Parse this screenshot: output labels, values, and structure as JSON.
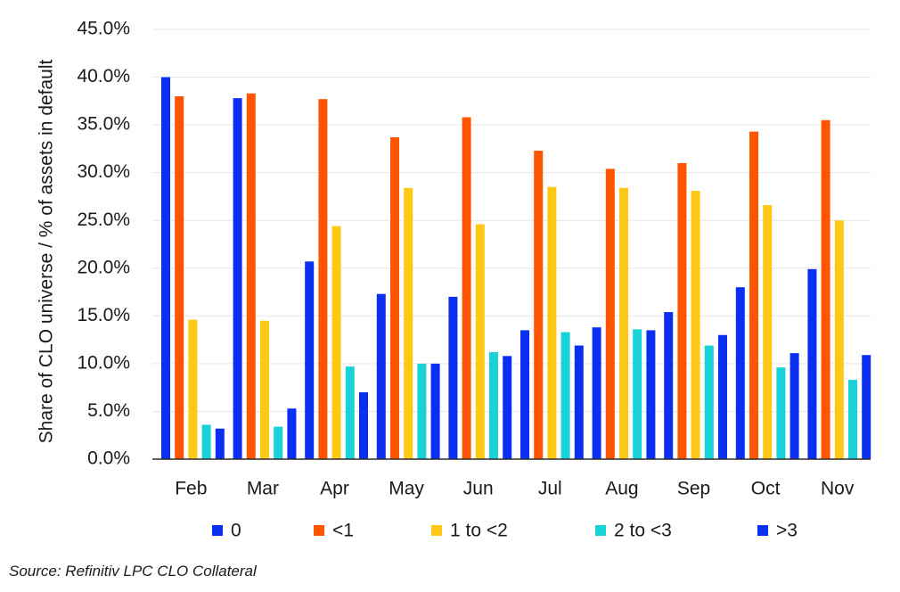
{
  "chart_data": {
    "type": "bar",
    "ylabel": "Share of CLO universe / % of assets in default",
    "xlabel": "",
    "ylim": [
      0,
      45
    ],
    "y_ticks": [
      "0.0%",
      "5.0%",
      "10.0%",
      "15.0%",
      "20.0%",
      "25.0%",
      "30.0%",
      "35.0%",
      "40.0%",
      "45.0%"
    ],
    "grid": true,
    "legend_position": "bottom",
    "categories": [
      "Feb",
      "Mar",
      "Apr",
      "May",
      "Jun",
      "Jul",
      "Aug",
      "Sep",
      "Oct",
      "Nov"
    ],
    "series": [
      {
        "name": "0",
        "color": "#0a2ff0",
        "values": [
          40.0,
          37.8,
          20.7,
          17.3,
          17.0,
          13.5,
          13.8,
          15.4,
          18.0,
          19.9
        ]
      },
      {
        "name": "<1",
        "color": "#ff5500",
        "values": [
          38.0,
          38.3,
          37.7,
          33.7,
          35.8,
          32.3,
          30.4,
          31.0,
          34.3,
          35.5
        ]
      },
      {
        "name": "1 to <2",
        "color": "#ffc814",
        "values": [
          14.6,
          14.5,
          24.4,
          28.4,
          24.6,
          28.5,
          28.4,
          28.1,
          26.6,
          25.0
        ]
      },
      {
        "name": "2 to <3",
        "color": "#19d2d7",
        "values": [
          3.6,
          3.4,
          9.7,
          10.0,
          11.2,
          13.3,
          13.6,
          11.9,
          9.6,
          8.3
        ]
      },
      {
        "name": ">3",
        "color": "#0a2ff0",
        "values": [
          3.2,
          5.3,
          7.0,
          10.0,
          10.8,
          11.9,
          13.5,
          13.0,
          11.1,
          10.9
        ]
      }
    ]
  },
  "source": "Source: Refinitiv LPC CLO Collateral"
}
